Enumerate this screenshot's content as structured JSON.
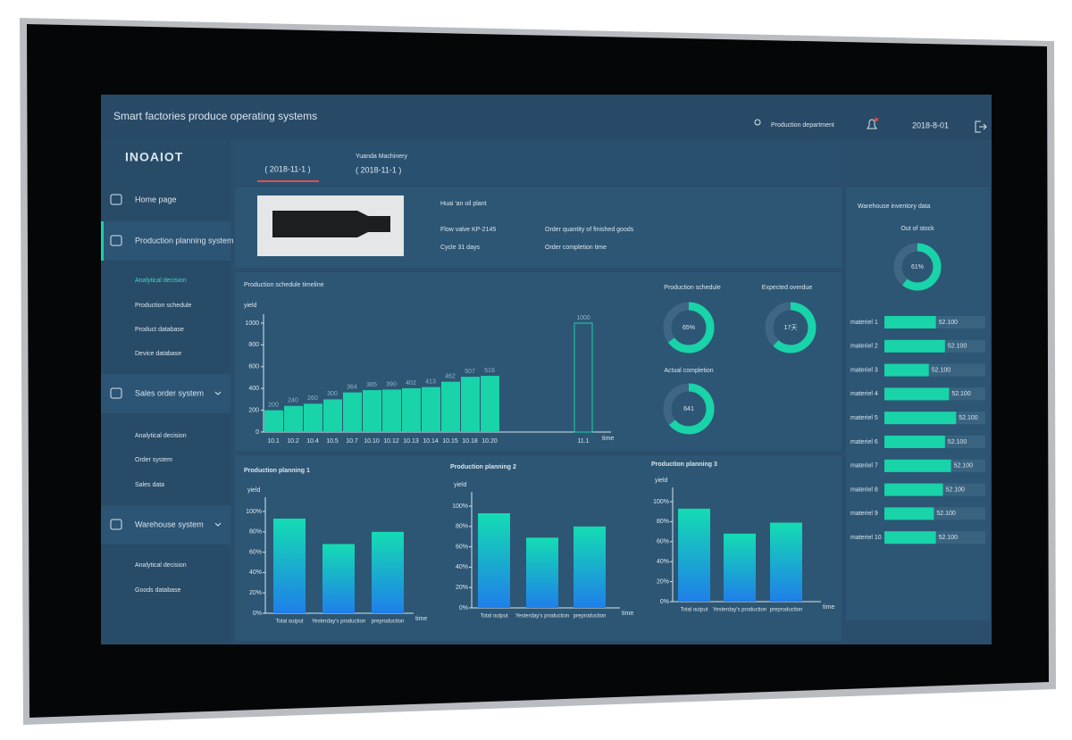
{
  "header": {
    "title": "Smart factories produce operating systems",
    "user": "Production department",
    "date": "2018-8-01"
  },
  "sidebar": {
    "logo": "INOAIOT",
    "items": [
      {
        "label": "Home page",
        "children": []
      },
      {
        "label": "Production planning system",
        "children": [
          "Analytical decision",
          "Production schedule",
          "Product database",
          "Device database"
        ]
      },
      {
        "label": "Sales order system",
        "children": [
          "Analytical decision",
          "Order system",
          "Sales data"
        ]
      },
      {
        "label": "Warehouse system",
        "children": [
          "Analytical decision",
          "Goods database"
        ]
      }
    ]
  },
  "tabs": {
    "active": "( 2018-11-1 )",
    "other_name": "Yuanda Machinery",
    "other_date": "( 2018-11-1 )"
  },
  "product": {
    "plant": "Huai 'an oil plant",
    "model": "Flow valve KP-2145",
    "order_quantity": "Order quantity of finished goods",
    "cycle": "Cycle 31 days",
    "completion_time": "Order completion time"
  },
  "timeline": {
    "type": "bar",
    "title": "Production schedule timeline",
    "y_label": "yield",
    "x_label": "time",
    "categories": [
      "10.1",
      "10.2",
      "10.4",
      "10.5",
      "10.7",
      "10.10",
      "10.12",
      "10.13",
      "10.14",
      "10.15",
      "10.18",
      "10.20"
    ],
    "values": [
      200,
      240,
      260,
      300,
      364,
      385,
      390,
      402,
      413,
      462,
      507,
      516
    ],
    "target": {
      "category": "11.1",
      "value": 1000
    },
    "ylim": [
      0,
      1000
    ],
    "yticks": [
      0,
      200,
      400,
      600,
      800,
      1000
    ],
    "color": "#19d3a9"
  },
  "gauges": [
    {
      "title": "Production schedule",
      "value": 65,
      "value_label": "65%",
      "arc_percent": 65
    },
    {
      "title": "Expected overdue",
      "value": 17,
      "value_label": "17天",
      "arc_percent": 62
    },
    {
      "title": "Actual completion",
      "value": 641,
      "arc_percent": 64
    }
  ],
  "planning": [
    {
      "type": "bar",
      "title": "Production planning 1",
      "y_label": "yield",
      "x_label": "time",
      "categories": [
        "Total output",
        "Yesterday's production",
        "preproduction"
      ],
      "values": [
        93,
        68,
        80
      ],
      "ylim": [
        0,
        100
      ],
      "yticks": [
        {
          "value": 0,
          "label": "0%"
        },
        {
          "value": 20,
          "label": "20%"
        },
        {
          "value": 40,
          "label": "40%"
        },
        {
          "value": 60,
          "label": "60%"
        },
        {
          "value": 80,
          "label": "80%"
        },
        {
          "value": 100,
          "label": "100%"
        }
      ]
    },
    {
      "type": "bar",
      "title": "Production planning 2",
      "y_label": "yield",
      "x_label": "time",
      "categories": [
        "Total output",
        "Yesterday's production",
        "preproduction"
      ],
      "values": [
        93,
        69,
        80
      ],
      "ylim": [
        0,
        100
      ],
      "yticks": [
        {
          "value": 0,
          "label": "0%"
        },
        {
          "value": 20,
          "label": "20%"
        },
        {
          "value": 40,
          "label": "40%"
        },
        {
          "value": 60,
          "label": "60%"
        },
        {
          "value": 80,
          "label": "80%"
        },
        {
          "value": 100,
          "label": "100%"
        }
      ]
    },
    {
      "type": "bar",
      "title": "Production planning 3",
      "y_label": "yield",
      "x_label": "time",
      "categories": [
        "Total output",
        "Yesterday's production",
        "preproduction"
      ],
      "values": [
        93,
        68,
        79
      ],
      "ylim": [
        0,
        100
      ],
      "yticks": [
        {
          "value": 0,
          "label": "0%"
        },
        {
          "value": 20,
          "label": "20%"
        },
        {
          "value": 40,
          "label": "40%"
        },
        {
          "value": 60,
          "label": "60%"
        },
        {
          "value": 80,
          "label": "80%"
        },
        {
          "value": 100,
          "label": "100%"
        }
      ]
    }
  ],
  "inventory": {
    "title": "Warehouse inventory data",
    "gauge_title": "Out of stock",
    "gauge_value": 61,
    "gauge_label": "61%",
    "materials": [
      "materiel 1",
      "materiel 2",
      "materiel 3",
      "materiel 4",
      "materiel 5",
      "materiel 6",
      "materiel 7",
      "materiel 8",
      "materiel 9",
      "materiel 10"
    ],
    "fill_percent": [
      51,
      60,
      44,
      64,
      71,
      60,
      66,
      58,
      49,
      51
    ],
    "value_texts": [
      "52.100",
      "52.100",
      "52.100",
      "52.100",
      "52.100",
      "52.100",
      "52.100",
      "52.100",
      "52.100",
      "52.100"
    ]
  }
}
